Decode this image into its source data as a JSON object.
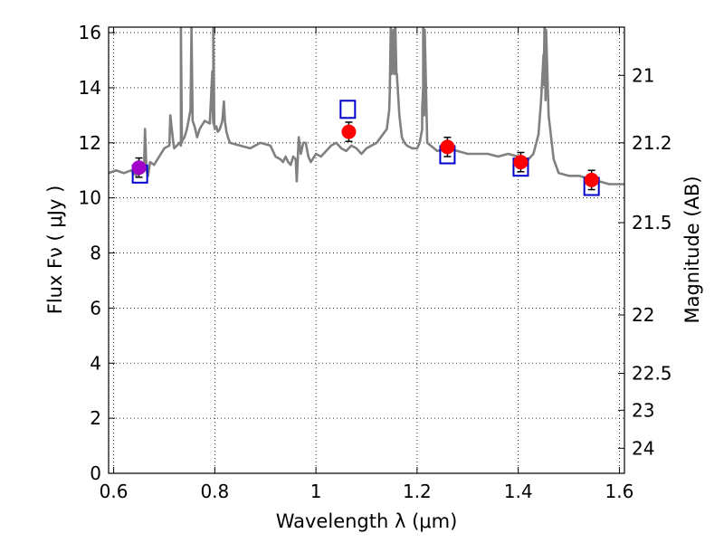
{
  "chart_data": {
    "type": "scatter",
    "title": "",
    "xlabel": "Wavelength  λ (μm)",
    "ylabel": "Flux  Fν  ( μJy )",
    "y2label": "Magnitude (AB)",
    "xlim": [
      0.59,
      1.61
    ],
    "ylim": [
      0,
      16.2
    ],
    "grid": true,
    "xticks": [
      0.6,
      0.8,
      1.0,
      1.2,
      1.4,
      1.6
    ],
    "xtick_labels": [
      "0.6",
      "0.8",
      "1",
      "1.2",
      "1.4",
      "1.6"
    ],
    "yticks": [
      0,
      2,
      4,
      6,
      8,
      10,
      12,
      14,
      16
    ],
    "ytick_labels": [
      "0",
      "2",
      "4",
      "6",
      "8",
      "10",
      "12",
      "14",
      "16"
    ],
    "y2ticks": [
      {
        "label": "21",
        "flux": 14.45
      },
      {
        "label": "21.2",
        "flux": 12.0
      },
      {
        "label": "21.5",
        "flux": 9.1
      },
      {
        "label": "22",
        "flux": 5.75
      },
      {
        "label": "22.5",
        "flux": 3.63
      },
      {
        "label": "23",
        "flux": 2.29
      },
      {
        "label": "24",
        "flux": 0.91
      }
    ],
    "colors": {
      "spectrum": "#808080",
      "observed": "#ff0000",
      "first_point": "#a000c8",
      "model": "#0000cc",
      "errorbar": "#000000"
    },
    "series": [
      {
        "kind": "spectrum",
        "x": [
          0.59,
          0.605,
          0.62,
          0.635,
          0.645,
          0.655,
          0.66,
          0.662,
          0.665,
          0.668,
          0.672,
          0.68,
          0.69,
          0.7,
          0.71,
          0.712,
          0.718,
          0.72,
          0.725,
          0.73,
          0.733,
          0.736,
          0.74,
          0.745,
          0.748,
          0.752,
          0.756,
          0.76,
          0.765,
          0.77,
          0.78,
          0.79,
          0.795,
          0.797,
          0.8,
          0.803,
          0.806,
          0.81,
          0.815,
          0.818,
          0.82,
          0.823,
          0.826,
          0.83,
          0.85,
          0.87,
          0.89,
          0.91,
          0.92,
          0.93,
          0.935,
          0.94,
          0.945,
          0.95,
          0.955,
          0.96,
          0.962,
          0.966,
          0.97,
          0.975,
          0.98,
          0.985,
          0.99,
          1.0,
          1.01,
          1.02,
          1.03,
          1.04,
          1.05,
          1.06,
          1.07,
          1.08,
          1.09,
          1.1,
          1.12,
          1.14,
          1.145,
          1.15,
          1.153,
          1.156,
          1.16,
          1.165,
          1.17,
          1.175,
          1.18,
          1.19,
          1.2,
          1.205,
          1.21,
          1.212,
          1.215,
          1.22,
          1.24,
          1.26,
          1.28,
          1.3,
          1.32,
          1.34,
          1.36,
          1.38,
          1.4,
          1.42,
          1.43,
          1.44,
          1.445,
          1.45,
          1.455,
          1.46,
          1.47,
          1.48,
          1.5,
          1.52,
          1.54,
          1.56,
          1.58,
          1.6,
          1.61
        ],
        "y": [
          10.9,
          11.0,
          10.9,
          11.0,
          10.8,
          11.2,
          11.0,
          12.5,
          11.0,
          10.8,
          11.3,
          11.2,
          11.5,
          11.8,
          11.9,
          13.0,
          12.0,
          11.8,
          11.9,
          12.0,
          11.9,
          12.1,
          12.2,
          12.5,
          12.8,
          13.2,
          13.0,
          12.6,
          12.2,
          12.5,
          12.8,
          12.7,
          14.6,
          12.7,
          12.5,
          12.6,
          12.4,
          12.5,
          12.8,
          13.5,
          12.8,
          12.4,
          12.2,
          12.0,
          11.9,
          11.8,
          12.0,
          11.9,
          11.5,
          11.4,
          11.3,
          11.5,
          11.3,
          11.2,
          11.5,
          11.4,
          10.6,
          12.2,
          11.6,
          12.0,
          12.0,
          11.5,
          11.3,
          11.6,
          11.5,
          11.7,
          11.9,
          12.0,
          11.8,
          11.7,
          11.9,
          11.8,
          11.6,
          11.8,
          12.0,
          12.5,
          13.2,
          14.5,
          16.1,
          16.1,
          14.5,
          13.0,
          12.2,
          12.0,
          11.9,
          11.8,
          11.8,
          12.0,
          12.5,
          14.0,
          16.1,
          12.0,
          11.7,
          11.8,
          11.7,
          11.6,
          11.6,
          11.6,
          11.5,
          11.6,
          11.5,
          11.4,
          11.6,
          12.3,
          13.5,
          15.2,
          16.1,
          13.0,
          11.4,
          10.9,
          10.8,
          10.8,
          10.7,
          10.6,
          10.5,
          10.5,
          10.5
        ]
      },
      {
        "kind": "observed",
        "name": "",
        "x": [
          0.65,
          1.065,
          1.26,
          1.405,
          1.545
        ],
        "y": [
          11.1,
          12.4,
          11.85,
          11.3,
          10.65
        ],
        "yerr": [
          0.35,
          0.35,
          0.35,
          0.35,
          0.35
        ]
      },
      {
        "kind": "model",
        "name": "",
        "x": [
          0.652,
          1.063,
          1.26,
          1.405,
          1.545
        ],
        "y": [
          10.85,
          13.2,
          11.55,
          11.1,
          10.4
        ]
      }
    ],
    "spike_peaks": [
      {
        "x": 0.733,
        "y": 16.2
      },
      {
        "x": 0.754,
        "y": 16.2
      },
      {
        "x": 0.797,
        "y": 16.2
      },
      {
        "x": 1.148,
        "y": 16.2
      },
      {
        "x": 1.157,
        "y": 16.2
      },
      {
        "x": 1.212,
        "y": 16.2
      },
      {
        "x": 1.452,
        "y": 16.2
      }
    ]
  }
}
